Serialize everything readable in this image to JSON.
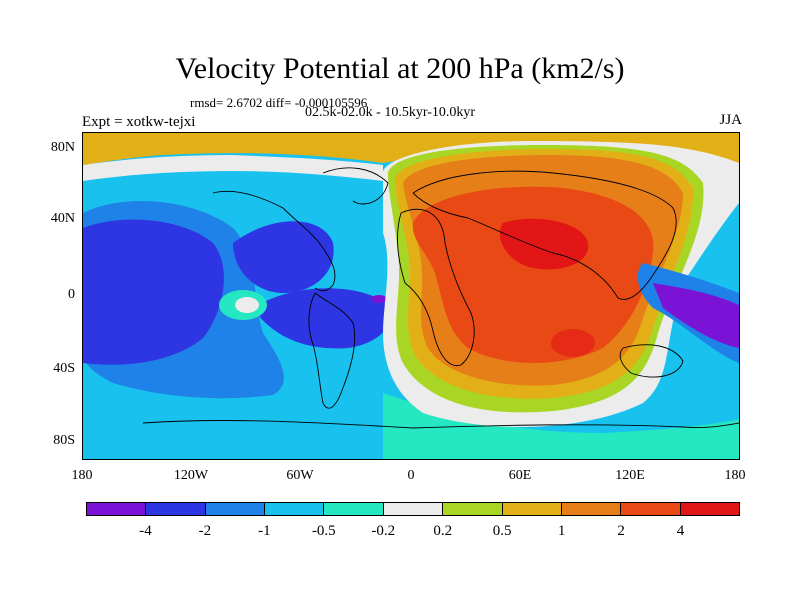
{
  "title": "Velocity Potential at 200 hPa (km2/s)",
  "stats": "rmsd= 2.6702 diff= -0.000105596",
  "experiment": "Expt = xotkw-tejxi",
  "period": "02.5k-02.0k - 10.5kyr-10.0kyr",
  "season": "JJA",
  "map": {
    "y_ticks": [
      "80N",
      "40N",
      "0",
      "40S",
      "80S"
    ],
    "x_ticks": [
      "180",
      "120W",
      "60W",
      "0",
      "60E",
      "120E",
      "180"
    ],
    "lat_values": [
      80,
      40,
      0,
      -40,
      -80
    ],
    "lon_values": [
      -180,
      -120,
      -60,
      0,
      60,
      120,
      180
    ]
  },
  "colorbar": {
    "labels": [
      "-4",
      "-2",
      "-1",
      "-0.5",
      "-0.2",
      "0.2",
      "0.5",
      "1",
      "2",
      "4"
    ],
    "colors": [
      "#7b13d6",
      "#2e35e2",
      "#1f82e8",
      "#18c1ee",
      "#25e7c2",
      "#ececec",
      "#a9d624",
      "#e2b016",
      "#e77f19",
      "#e84915",
      "#e21616"
    ]
  }
}
